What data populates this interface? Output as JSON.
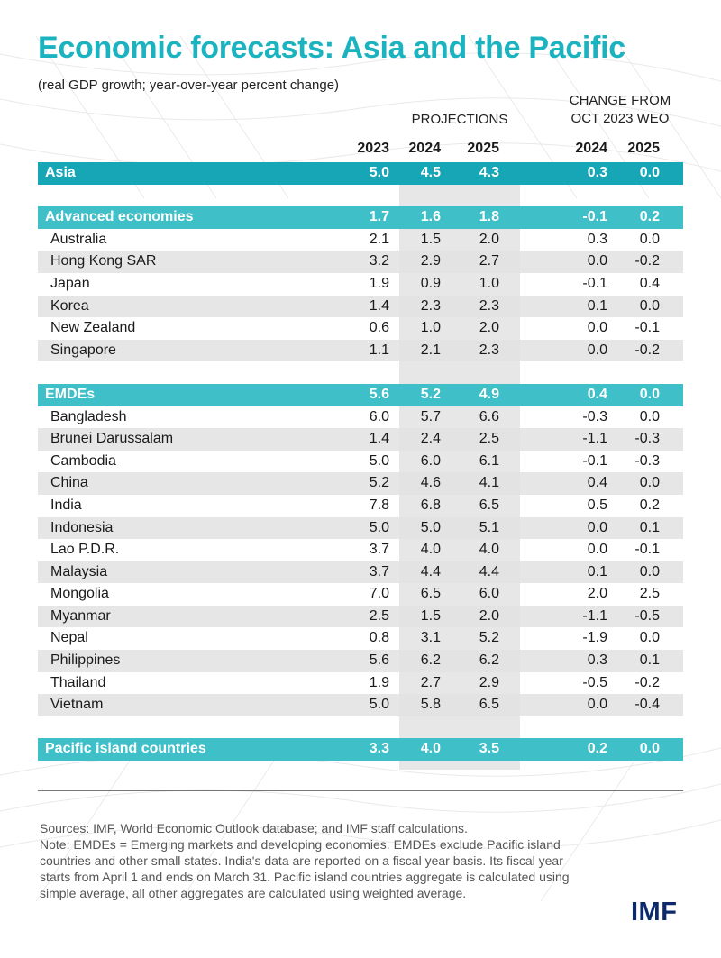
{
  "title": "Economic forecasts: Asia and the Pacific",
  "subtitle": "(real GDP growth; year-over-year percent change)",
  "header": {
    "projections": "PROJECTIONS",
    "change_line1": "CHANGE FROM",
    "change_line2": "OCT 2023 WEO",
    "years": [
      "2023",
      "2024",
      "2025",
      "2024",
      "2025"
    ]
  },
  "rows": [
    {
      "type": "group",
      "name": "Asia",
      "v": [
        "5.0",
        "4.5",
        "4.3",
        "0.3",
        "0.0"
      ]
    },
    {
      "type": "blank"
    },
    {
      "type": "group",
      "name": "Advanced economies",
      "v": [
        "1.7",
        "1.6",
        "1.8",
        "-0.1",
        "0.2"
      ]
    },
    {
      "type": "item",
      "name": "Australia",
      "v": [
        "2.1",
        "1.5",
        "2.0",
        "0.3",
        "0.0"
      ]
    },
    {
      "type": "item",
      "name": "Hong Kong SAR",
      "v": [
        "3.2",
        "2.9",
        "2.7",
        "0.0",
        "-0.2"
      ]
    },
    {
      "type": "item",
      "name": "Japan",
      "v": [
        "1.9",
        "0.9",
        "1.0",
        "-0.1",
        "0.4"
      ]
    },
    {
      "type": "item",
      "name": "Korea",
      "v": [
        "1.4",
        "2.3",
        "2.3",
        "0.1",
        "0.0"
      ]
    },
    {
      "type": "item",
      "name": "New Zealand",
      "v": [
        "0.6",
        "1.0",
        "2.0",
        "0.0",
        "-0.1"
      ]
    },
    {
      "type": "item",
      "name": "Singapore",
      "v": [
        "1.1",
        "2.1",
        "2.3",
        "0.0",
        "-0.2"
      ]
    },
    {
      "type": "blank"
    },
    {
      "type": "group",
      "name": "EMDEs",
      "v": [
        "5.6",
        "5.2",
        "4.9",
        "0.4",
        "0.0"
      ]
    },
    {
      "type": "item",
      "name": "Bangladesh",
      "v": [
        "6.0",
        "5.7",
        "6.6",
        "-0.3",
        "0.0"
      ]
    },
    {
      "type": "item",
      "name": "Brunei Darussalam",
      "v": [
        "1.4",
        "2.4",
        "2.5",
        "-1.1",
        "-0.3"
      ]
    },
    {
      "type": "item",
      "name": "Cambodia",
      "v": [
        "5.0",
        "6.0",
        "6.1",
        "-0.1",
        "-0.3"
      ]
    },
    {
      "type": "item",
      "name": "China",
      "v": [
        "5.2",
        "4.6",
        "4.1",
        "0.4",
        "0.0"
      ]
    },
    {
      "type": "item",
      "name": "India",
      "v": [
        "7.8",
        "6.8",
        "6.5",
        "0.5",
        "0.2"
      ]
    },
    {
      "type": "item",
      "name": "Indonesia",
      "v": [
        "5.0",
        "5.0",
        "5.1",
        "0.0",
        "0.1"
      ]
    },
    {
      "type": "item",
      "name": "Lao P.D.R.",
      "v": [
        "3.7",
        "4.0",
        "4.0",
        "0.0",
        "-0.1"
      ]
    },
    {
      "type": "item",
      "name": "Malaysia",
      "v": [
        "3.7",
        "4.4",
        "4.4",
        "0.1",
        "0.0"
      ]
    },
    {
      "type": "item",
      "name": "Mongolia",
      "v": [
        "7.0",
        "6.5",
        "6.0",
        "2.0",
        "2.5"
      ]
    },
    {
      "type": "item",
      "name": "Myanmar",
      "v": [
        "2.5",
        "1.5",
        "2.0",
        "-1.1",
        "-0.5"
      ]
    },
    {
      "type": "item",
      "name": "Nepal",
      "v": [
        "0.8",
        "3.1",
        "5.2",
        "-1.9",
        "0.0"
      ]
    },
    {
      "type": "item",
      "name": "Philippines",
      "v": [
        "5.6",
        "6.2",
        "6.2",
        "0.3",
        "0.1"
      ]
    },
    {
      "type": "item",
      "name": "Thailand",
      "v": [
        "1.9",
        "2.7",
        "2.9",
        "-0.5",
        "-0.2"
      ]
    },
    {
      "type": "item",
      "name": "Vietnam",
      "v": [
        "5.0",
        "5.8",
        "6.5",
        "0.0",
        "-0.4"
      ]
    },
    {
      "type": "blank"
    },
    {
      "type": "group",
      "name": "Pacific island countries",
      "v": [
        "3.3",
        "4.0",
        "3.5",
        "0.2",
        "0.0"
      ]
    }
  ],
  "notes": [
    "Sources: IMF, World Economic Outlook database; and IMF staff calculations.",
    "Note: EMDEs = Emerging markets and developing economies. EMDEs exclude Pacific island countries and other small states. India's data are reported on a fiscal year basis. Its fiscal year starts from April 1 and ends on March 31. Pacific island countries aggregate is calculated using simple average, all other aggregates are calculated using weighted average."
  ],
  "logo": "IMF",
  "colors": {
    "title": "#1bb3c0",
    "asia_band": "#16a6b5",
    "group_band": "#3fbfc8",
    "alt_row": "#e2e2e2",
    "logo": "#0c2a6b"
  }
}
